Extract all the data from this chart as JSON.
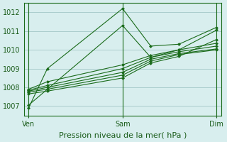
{
  "title": "",
  "xlabel": "Pression niveau de la mer( hPa )",
  "ylabel": "",
  "bg_color": "#d8eeee",
  "grid_color": "#aacccc",
  "line_color": "#1a6b1a",
  "ylim": [
    1006.5,
    1012.5
  ],
  "yticks": [
    1007,
    1008,
    1009,
    1010,
    1011,
    1012
  ],
  "xtick_labels": [
    "Ven",
    "Sam",
    "Dim"
  ],
  "xtick_positions": [
    0,
    1,
    2
  ],
  "series": [
    [
      1006.9,
      1009.0,
      1012.2,
      1010.2,
      1010.3,
      1011.2
    ],
    [
      1007.05,
      1007.9,
      1011.3,
      1009.6,
      1010.0,
      1011.05
    ],
    [
      1007.9,
      1008.3,
      1009.2,
      1009.7,
      1010.0,
      1010.35
    ],
    [
      1007.85,
      1008.1,
      1009.0,
      1009.6,
      1009.9,
      1010.2
    ],
    [
      1007.8,
      1008.0,
      1008.8,
      1009.5,
      1009.8,
      1010.05
    ],
    [
      1007.75,
      1007.9,
      1008.65,
      1009.4,
      1009.75,
      1010.0
    ],
    [
      1007.65,
      1007.8,
      1008.5,
      1009.3,
      1009.65,
      1010.55
    ]
  ],
  "x_values": [
    0.0,
    0.2,
    1.0,
    1.3,
    1.6,
    2.0
  ]
}
